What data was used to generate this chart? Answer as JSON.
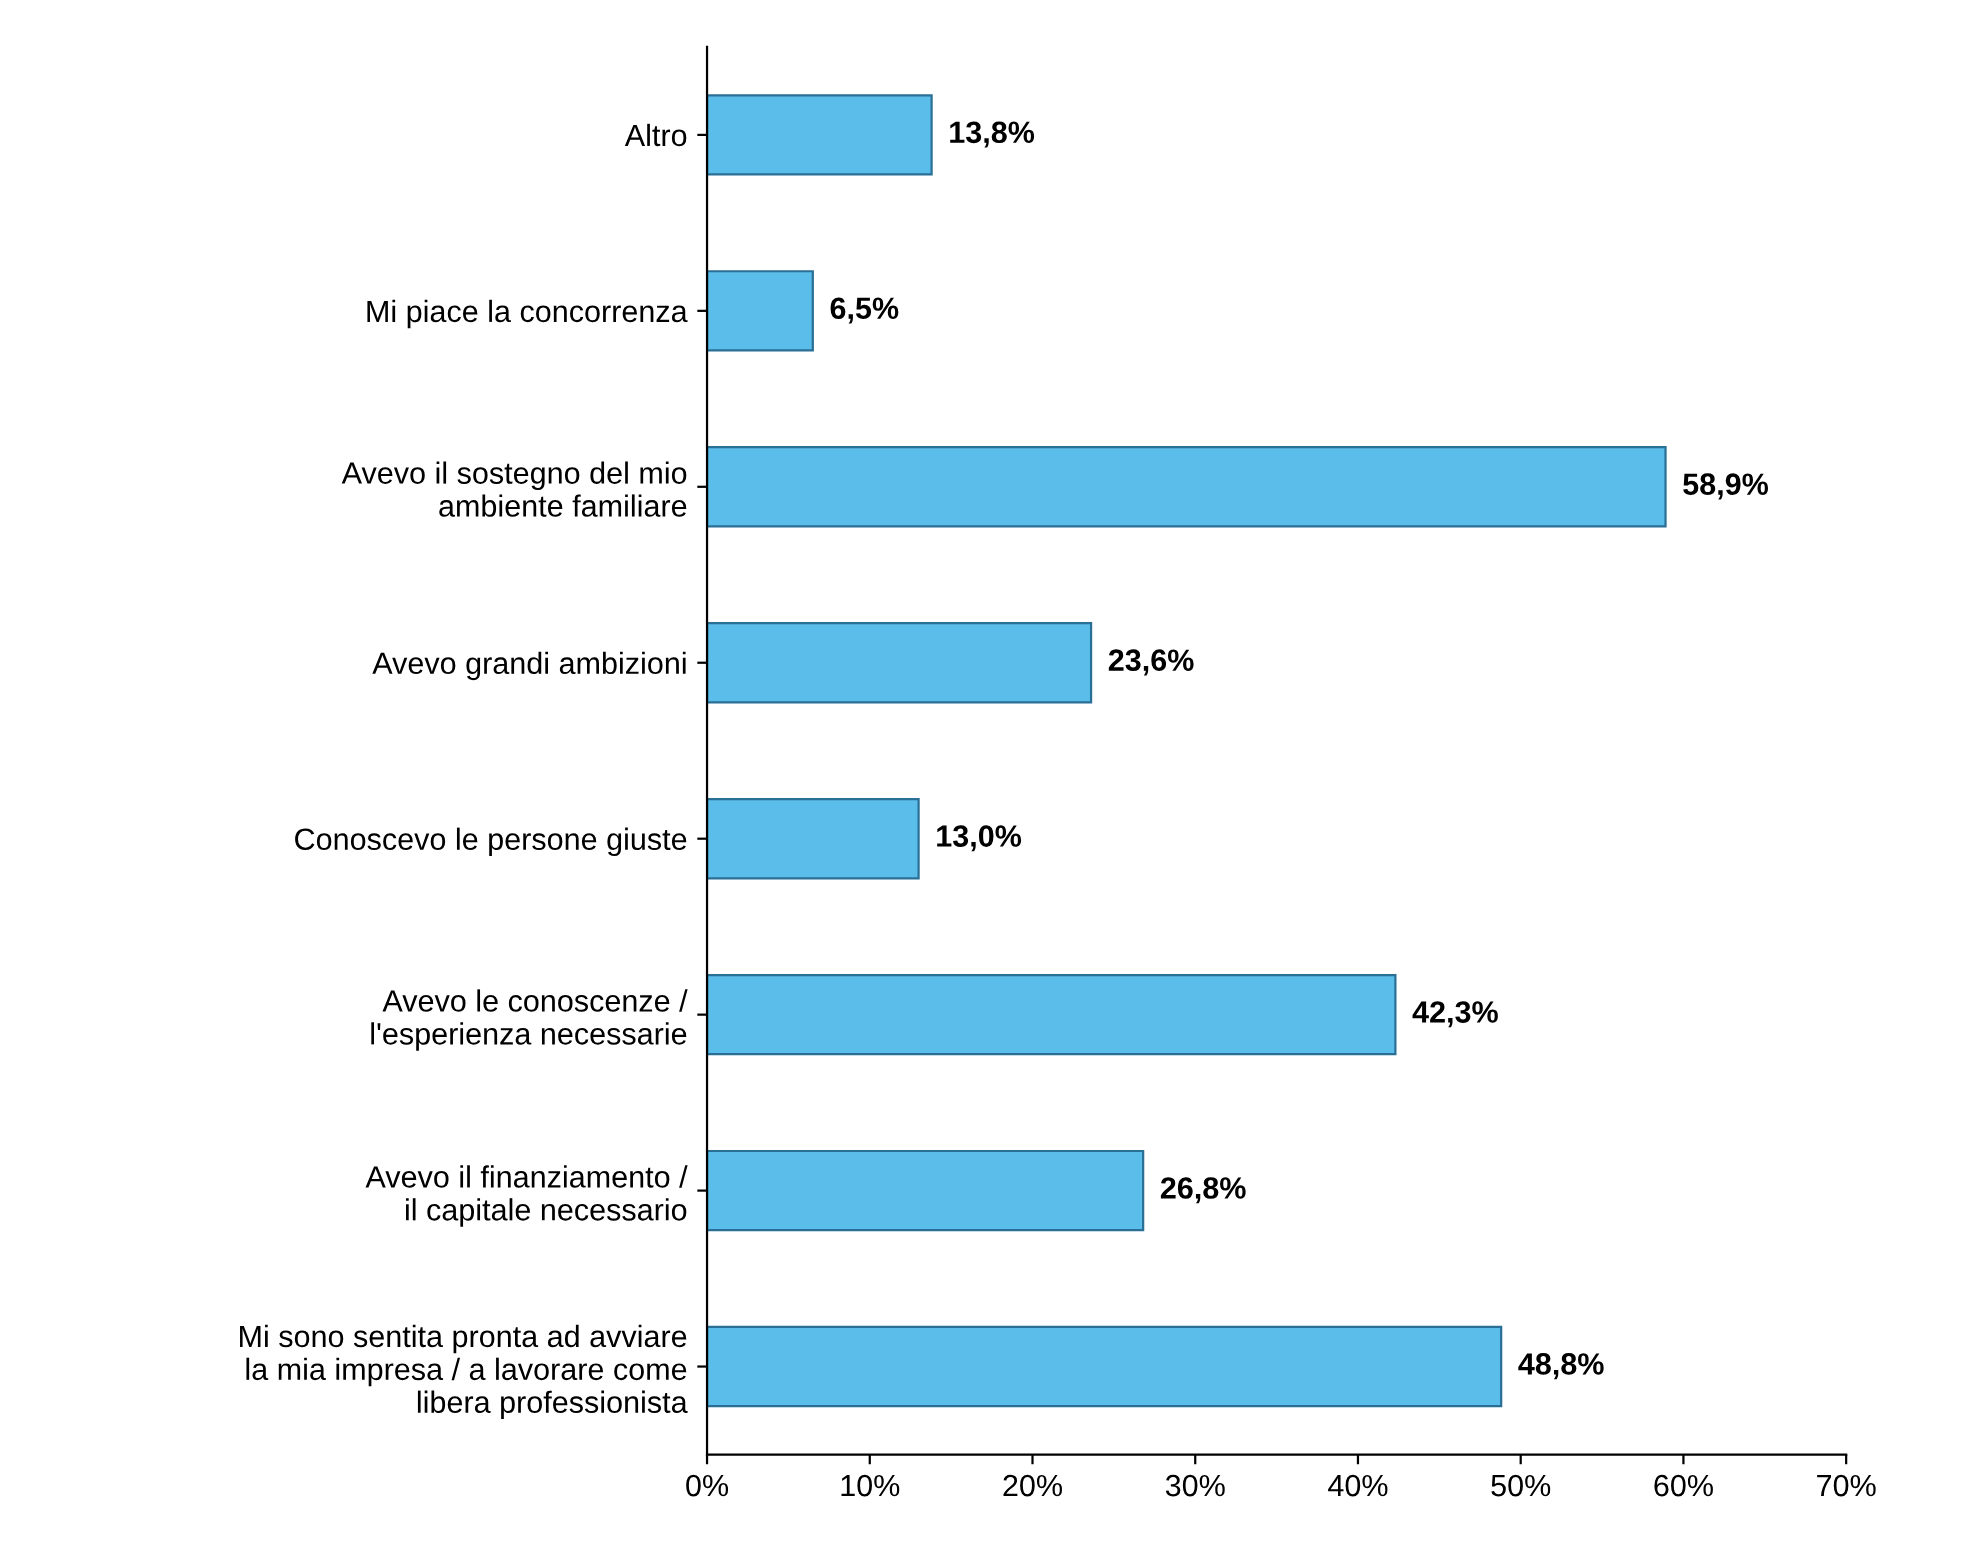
{
  "chart_data": {
    "type": "bar",
    "orientation": "horizontal",
    "categories": [
      "Altro",
      "Mi piace la concorrenza",
      "Avevo il sostegno del mio\nambiente familiare",
      "Avevo grandi ambizioni",
      "Conoscevo le persone giuste",
      "Avevo le conoscenze /\nl'esperienza necessarie",
      "Avevo il finanziamento /\nil capitale necessario",
      "Mi sono sentita pronta ad avviare\nla mia impresa / a lavorare come\nlibera professionista"
    ],
    "values": [
      13.8,
      6.5,
      58.9,
      23.6,
      13.0,
      42.3,
      26.8,
      48.8
    ],
    "value_labels": [
      "13,8%",
      "6,5%",
      "58,9%",
      "23,6%",
      "13,0%",
      "42,3%",
      "26,8%",
      "48,8%"
    ],
    "color": "#5bbde9",
    "xlim": [
      0,
      70
    ],
    "xticks": [
      {
        "value": 0,
        "label": "0%"
      },
      {
        "value": 10,
        "label": "10%"
      },
      {
        "value": 20,
        "label": "20%"
      },
      {
        "value": 30,
        "label": "30%"
      },
      {
        "value": 40,
        "label": "40%"
      },
      {
        "value": 50,
        "label": "50%"
      },
      {
        "value": 60,
        "label": "60%"
      },
      {
        "value": 70,
        "label": "70%"
      }
    ],
    "grid": false,
    "legend": false
  }
}
